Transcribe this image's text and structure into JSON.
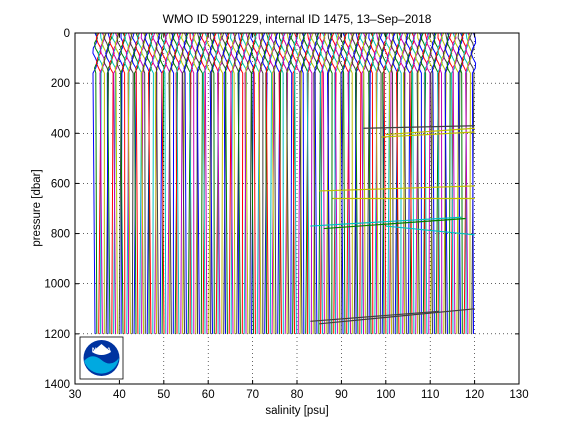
{
  "chart_data": {
    "type": "line",
    "title": "WMO ID 5901229, internal ID 1475, 13–Sep–2018",
    "xlabel": "salinity [psu]",
    "ylabel": "pressure [dbar]",
    "xlim": [
      30,
      130
    ],
    "ylim": [
      0,
      1400
    ],
    "y_reversed": true,
    "xticks": [
      30,
      40,
      50,
      60,
      70,
      80,
      90,
      100,
      110,
      120,
      130
    ],
    "yticks": [
      0,
      200,
      400,
      600,
      800,
      1000,
      1200,
      1400
    ],
    "grid": true,
    "profiles": {
      "salinity_start": 34.5,
      "salinity_end": 120,
      "pressure_top": 0,
      "pressure_bottom": 1200,
      "colors": [
        "#0000ff",
        "#008000",
        "#ff0000",
        "#00bfbf",
        "#bf00bf",
        "#bfbf00",
        "#404040"
      ]
    },
    "highlight_lines": [
      {
        "color": "#bfbf00",
        "x": [
          99,
          120
        ],
        "y": [
          415,
          395
        ]
      },
      {
        "color": "#bfbf00",
        "x": [
          100,
          120
        ],
        "y": [
          405,
          380
        ]
      },
      {
        "color": "#404040",
        "x": [
          95,
          120
        ],
        "y": [
          380,
          370
        ]
      },
      {
        "color": "#bfbf00",
        "x": [
          85,
          120
        ],
        "y": [
          630,
          610
        ]
      },
      {
        "color": "#bfbf00",
        "x": [
          88,
          120
        ],
        "y": [
          660,
          660
        ]
      },
      {
        "color": "#00bfbf",
        "x": [
          83,
          117
        ],
        "y": [
          770,
          735
        ]
      },
      {
        "color": "#008000",
        "x": [
          86,
          118
        ],
        "y": [
          780,
          740
        ]
      },
      {
        "color": "#00bfbf",
        "x": [
          100,
          120
        ],
        "y": [
          770,
          805
        ]
      },
      {
        "color": "#404040",
        "x": [
          83,
          112
        ],
        "y": [
          1150,
          1110
        ]
      },
      {
        "color": "#404040",
        "x": [
          85,
          120
        ],
        "y": [
          1160,
          1100
        ]
      }
    ]
  },
  "logo": {
    "text": "NOAA",
    "background": "#0033a0",
    "accent": "#00a9e0"
  }
}
